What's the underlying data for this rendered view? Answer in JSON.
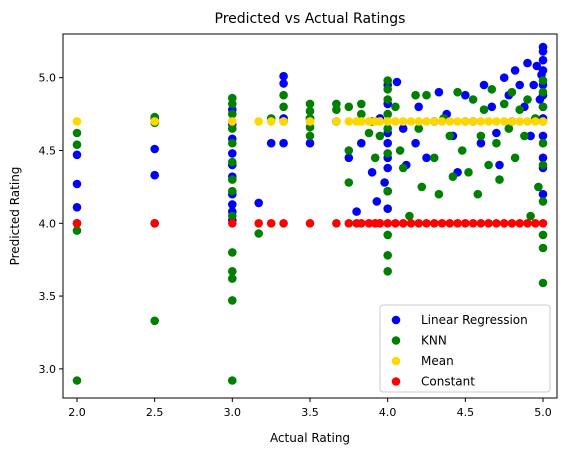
{
  "chart_data": {
    "type": "scatter",
    "title": "Predicted vs Actual Ratings",
    "xlabel": "Actual Rating",
    "ylabel": "Predicted Rating",
    "xlim": [
      1.91,
      5.09
    ],
    "ylim": [
      2.8,
      5.3
    ],
    "xticks": [
      "2.0",
      "2.5",
      "3.0",
      "3.5",
      "4.0",
      "4.5",
      "5.0"
    ],
    "yticks": [
      "3.0",
      "3.5",
      "4.0",
      "4.5",
      "5.0"
    ],
    "legend_position": "lower-right",
    "grid": false,
    "series": [
      {
        "name": "Linear Regression",
        "color": "#0000ff",
        "points": [
          [
            2.0,
            4.47
          ],
          [
            2.0,
            4.27
          ],
          [
            2.0,
            4.11
          ],
          [
            2.0,
            4.0
          ],
          [
            2.5,
            4.51
          ],
          [
            2.5,
            4.33
          ],
          [
            2.5,
            4.0
          ],
          [
            2.5,
            4.72
          ],
          [
            3.0,
            4.78
          ],
          [
            3.0,
            4.68
          ],
          [
            3.0,
            4.58
          ],
          [
            3.0,
            4.48
          ],
          [
            3.0,
            4.4
          ],
          [
            3.0,
            4.32
          ],
          [
            3.0,
            4.2
          ],
          [
            3.0,
            4.13
          ],
          [
            3.0,
            4.08
          ],
          [
            3.0,
            4.02
          ],
          [
            3.17,
            4.14
          ],
          [
            3.25,
            4.55
          ],
          [
            3.33,
            5.01
          ],
          [
            3.33,
            4.96
          ],
          [
            3.33,
            4.72
          ],
          [
            3.33,
            4.55
          ],
          [
            3.5,
            4.72
          ],
          [
            3.5,
            4.55
          ],
          [
            3.67,
            4.7
          ],
          [
            3.75,
            4.45
          ],
          [
            3.8,
            4.08
          ],
          [
            3.83,
            4.55
          ],
          [
            3.9,
            4.35
          ],
          [
            3.93,
            4.15
          ],
          [
            3.95,
            4.72
          ],
          [
            3.98,
            4.28
          ],
          [
            4.0,
            4.95
          ],
          [
            4.0,
            4.82
          ],
          [
            4.0,
            4.62
          ],
          [
            4.0,
            4.55
          ],
          [
            4.0,
            4.45
          ],
          [
            4.0,
            4.38
          ],
          [
            4.0,
            4.22
          ],
          [
            4.0,
            4.1
          ],
          [
            4.06,
            4.97
          ],
          [
            4.1,
            4.65
          ],
          [
            4.12,
            4.4
          ],
          [
            4.18,
            4.55
          ],
          [
            4.2,
            4.8
          ],
          [
            4.25,
            4.45
          ],
          [
            4.3,
            4.7
          ],
          [
            4.33,
            4.9
          ],
          [
            4.38,
            4.75
          ],
          [
            4.42,
            4.6
          ],
          [
            4.45,
            4.35
          ],
          [
            4.5,
            4.88
          ],
          [
            4.55,
            4.7
          ],
          [
            4.6,
            4.55
          ],
          [
            4.62,
            4.95
          ],
          [
            4.67,
            4.8
          ],
          [
            4.7,
            4.62
          ],
          [
            4.72,
            4.4
          ],
          [
            4.75,
            5.0
          ],
          [
            4.78,
            4.88
          ],
          [
            4.8,
            4.7
          ],
          [
            4.82,
            5.05
          ],
          [
            4.85,
            4.95
          ],
          [
            4.88,
            4.8
          ],
          [
            4.9,
            5.1
          ],
          [
            4.92,
            4.6
          ],
          [
            4.94,
            4.95
          ],
          [
            4.96,
            5.08
          ],
          [
            4.98,
            4.85
          ],
          [
            4.99,
            5.02
          ],
          [
            5.0,
            5.21
          ],
          [
            5.0,
            5.18
          ],
          [
            5.0,
            5.12
          ],
          [
            5.0,
            5.05
          ],
          [
            5.0,
            4.95
          ],
          [
            5.0,
            4.88
          ],
          [
            5.0,
            4.8
          ],
          [
            5.0,
            4.72
          ],
          [
            5.0,
            4.6
          ],
          [
            5.0,
            4.45
          ],
          [
            5.0,
            4.38
          ],
          [
            5.0,
            4.2
          ]
        ]
      },
      {
        "name": "KNN",
        "color": "#008000",
        "points": [
          [
            2.0,
            4.62
          ],
          [
            2.0,
            4.54
          ],
          [
            2.0,
            3.95
          ],
          [
            2.0,
            2.92
          ],
          [
            2.5,
            4.73
          ],
          [
            2.5,
            4.69
          ],
          [
            2.5,
            3.33
          ],
          [
            3.0,
            4.86
          ],
          [
            3.0,
            4.82
          ],
          [
            3.0,
            4.75
          ],
          [
            3.0,
            4.65
          ],
          [
            3.0,
            4.55
          ],
          [
            3.0,
            4.42
          ],
          [
            3.0,
            4.3
          ],
          [
            3.0,
            4.22
          ],
          [
            3.0,
            4.05
          ],
          [
            3.0,
            3.8
          ],
          [
            3.0,
            3.67
          ],
          [
            3.0,
            3.62
          ],
          [
            3.0,
            3.47
          ],
          [
            3.0,
            2.92
          ],
          [
            3.17,
            3.93
          ],
          [
            3.25,
            4.72
          ],
          [
            3.33,
            4.88
          ],
          [
            3.33,
            4.8
          ],
          [
            3.33,
            4.7
          ],
          [
            3.5,
            4.82
          ],
          [
            3.5,
            4.77
          ],
          [
            3.5,
            4.72
          ],
          [
            3.5,
            4.66
          ],
          [
            3.5,
            4.6
          ],
          [
            3.67,
            4.82
          ],
          [
            3.67,
            4.78
          ],
          [
            3.75,
            4.8
          ],
          [
            3.75,
            4.5
          ],
          [
            3.75,
            4.28
          ],
          [
            3.83,
            4.82
          ],
          [
            3.83,
            4.75
          ],
          [
            3.88,
            4.62
          ],
          [
            3.9,
            4.7
          ],
          [
            3.92,
            4.45
          ],
          [
            3.95,
            4.6
          ],
          [
            4.0,
            4.98
          ],
          [
            4.0,
            4.92
          ],
          [
            4.0,
            4.85
          ],
          [
            4.0,
            4.75
          ],
          [
            4.0,
            4.65
          ],
          [
            4.0,
            4.48
          ],
          [
            4.0,
            4.22
          ],
          [
            4.0,
            3.92
          ],
          [
            4.0,
            3.78
          ],
          [
            4.0,
            3.67
          ],
          [
            4.05,
            4.8
          ],
          [
            4.08,
            4.5
          ],
          [
            4.1,
            4.38
          ],
          [
            4.14,
            4.05
          ],
          [
            4.18,
            4.88
          ],
          [
            4.2,
            4.65
          ],
          [
            4.22,
            4.25
          ],
          [
            4.25,
            4.88
          ],
          [
            4.3,
            4.45
          ],
          [
            4.33,
            4.2
          ],
          [
            4.36,
            4.72
          ],
          [
            4.4,
            4.6
          ],
          [
            4.42,
            4.32
          ],
          [
            4.45,
            4.9
          ],
          [
            4.48,
            4.5
          ],
          [
            4.5,
            4.7
          ],
          [
            4.52,
            4.35
          ],
          [
            4.55,
            4.85
          ],
          [
            4.58,
            4.2
          ],
          [
            4.6,
            4.6
          ],
          [
            4.62,
            4.78
          ],
          [
            4.65,
            4.4
          ],
          [
            4.67,
            4.92
          ],
          [
            4.7,
            4.55
          ],
          [
            4.72,
            4.3
          ],
          [
            4.75,
            4.82
          ],
          [
            4.78,
            4.65
          ],
          [
            4.8,
            4.9
          ],
          [
            4.82,
            4.45
          ],
          [
            4.85,
            4.78
          ],
          [
            4.88,
            4.6
          ],
          [
            4.9,
            4.85
          ],
          [
            4.92,
            4.05
          ],
          [
            4.95,
            4.72
          ],
          [
            4.97,
            4.25
          ],
          [
            5.0,
            4.98
          ],
          [
            5.0,
            4.9
          ],
          [
            5.0,
            4.8
          ],
          [
            5.0,
            4.7
          ],
          [
            5.0,
            4.55
          ],
          [
            5.0,
            4.4
          ],
          [
            5.0,
            4.15
          ],
          [
            5.0,
            3.92
          ],
          [
            5.0,
            3.83
          ],
          [
            5.0,
            3.59
          ]
        ]
      },
      {
        "name": "Mean",
        "color": "#ffd700",
        "points": [
          [
            2.0,
            4.7
          ],
          [
            2.5,
            4.7
          ],
          [
            3.0,
            4.7
          ],
          [
            3.17,
            4.7
          ],
          [
            3.25,
            4.7
          ],
          [
            3.33,
            4.7
          ],
          [
            3.5,
            4.7
          ],
          [
            3.67,
            4.7
          ],
          [
            3.75,
            4.7
          ],
          [
            3.8,
            4.7
          ],
          [
            3.83,
            4.7
          ],
          [
            3.88,
            4.7
          ],
          [
            3.92,
            4.7
          ],
          [
            3.95,
            4.7
          ],
          [
            4.0,
            4.7
          ],
          [
            4.05,
            4.7
          ],
          [
            4.1,
            4.7
          ],
          [
            4.15,
            4.7
          ],
          [
            4.2,
            4.7
          ],
          [
            4.25,
            4.7
          ],
          [
            4.3,
            4.7
          ],
          [
            4.35,
            4.7
          ],
          [
            4.4,
            4.7
          ],
          [
            4.45,
            4.7
          ],
          [
            4.5,
            4.7
          ],
          [
            4.55,
            4.7
          ],
          [
            4.6,
            4.7
          ],
          [
            4.65,
            4.7
          ],
          [
            4.7,
            4.7
          ],
          [
            4.75,
            4.7
          ],
          [
            4.8,
            4.7
          ],
          [
            4.85,
            4.7
          ],
          [
            4.9,
            4.7
          ],
          [
            4.95,
            4.7
          ],
          [
            5.0,
            4.7
          ]
        ]
      },
      {
        "name": "Constant",
        "color": "#ff0000",
        "points": [
          [
            2.0,
            4.0
          ],
          [
            2.5,
            4.0
          ],
          [
            3.0,
            4.0
          ],
          [
            3.17,
            4.0
          ],
          [
            3.25,
            4.0
          ],
          [
            3.33,
            4.0
          ],
          [
            3.5,
            4.0
          ],
          [
            3.67,
            4.0
          ],
          [
            3.75,
            4.0
          ],
          [
            3.8,
            4.0
          ],
          [
            3.83,
            4.0
          ],
          [
            3.88,
            4.0
          ],
          [
            3.92,
            4.0
          ],
          [
            3.95,
            4.0
          ],
          [
            4.0,
            4.0
          ],
          [
            4.05,
            4.0
          ],
          [
            4.1,
            4.0
          ],
          [
            4.15,
            4.0
          ],
          [
            4.2,
            4.0
          ],
          [
            4.25,
            4.0
          ],
          [
            4.3,
            4.0
          ],
          [
            4.35,
            4.0
          ],
          [
            4.4,
            4.0
          ],
          [
            4.45,
            4.0
          ],
          [
            4.5,
            4.0
          ],
          [
            4.55,
            4.0
          ],
          [
            4.6,
            4.0
          ],
          [
            4.65,
            4.0
          ],
          [
            4.7,
            4.0
          ],
          [
            4.75,
            4.0
          ],
          [
            4.8,
            4.0
          ],
          [
            4.85,
            4.0
          ],
          [
            4.9,
            4.0
          ],
          [
            4.95,
            4.0
          ],
          [
            5.0,
            4.0
          ]
        ]
      }
    ]
  }
}
